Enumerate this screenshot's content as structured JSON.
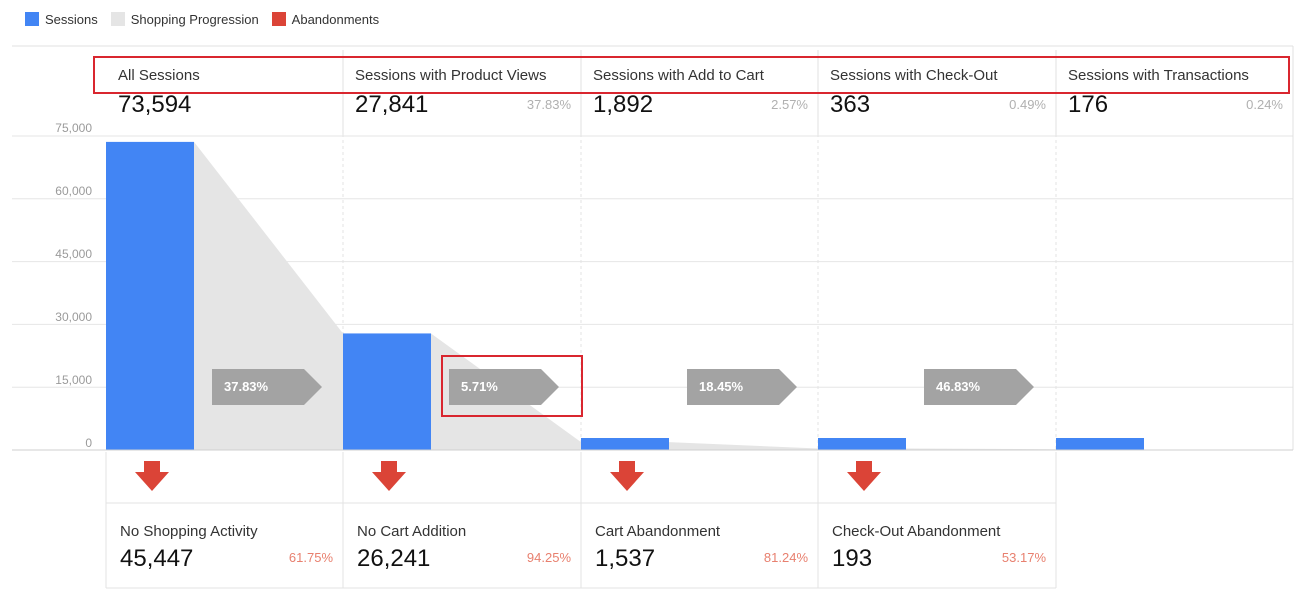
{
  "legend": [
    {
      "label": "Sessions",
      "color": "#4285f4"
    },
    {
      "label": "Shopping Progression",
      "color": "#e5e5e5"
    },
    {
      "label": "Abandonments",
      "color": "#db4437"
    }
  ],
  "chart_data": {
    "type": "bar",
    "title": "",
    "xlabel": "",
    "ylabel": "",
    "ylim": [
      0,
      75000
    ],
    "yticks": [
      "75,000",
      "60,000",
      "45,000",
      "30,000",
      "15,000",
      "0"
    ],
    "grid": true,
    "legend_position": "top-left",
    "categories": [
      "All Sessions",
      "Sessions with Product Views",
      "Sessions with Add to Cart",
      "Sessions with Check-Out",
      "Sessions with Transactions"
    ],
    "series": [
      {
        "name": "Sessions",
        "values": [
          73594,
          27841,
          1892,
          363,
          176
        ]
      }
    ],
    "stages": [
      {
        "title": "All Sessions",
        "value": "73,594",
        "pct": ""
      },
      {
        "title": "Sessions with Product Views",
        "value": "27,841",
        "pct": "37.83%"
      },
      {
        "title": "Sessions with Add to Cart",
        "value": "1,892",
        "pct": "2.57%"
      },
      {
        "title": "Sessions with Check-Out",
        "value": "363",
        "pct": "0.49%"
      },
      {
        "title": "Sessions with Transactions",
        "value": "176",
        "pct": "0.24%"
      }
    ],
    "progression_rates": [
      "37.83%",
      "5.71%",
      "18.45%",
      "46.83%"
    ],
    "abandonments": [
      {
        "title": "No Shopping Activity",
        "value": "45,447",
        "pct": "61.75%"
      },
      {
        "title": "No Cart Addition",
        "value": "26,241",
        "pct": "94.25%"
      },
      {
        "title": "Cart Abandonment",
        "value": "1,537",
        "pct": "81.24%"
      },
      {
        "title": "Check-Out Abandonment",
        "value": "193",
        "pct": "53.17%"
      }
    ]
  }
}
